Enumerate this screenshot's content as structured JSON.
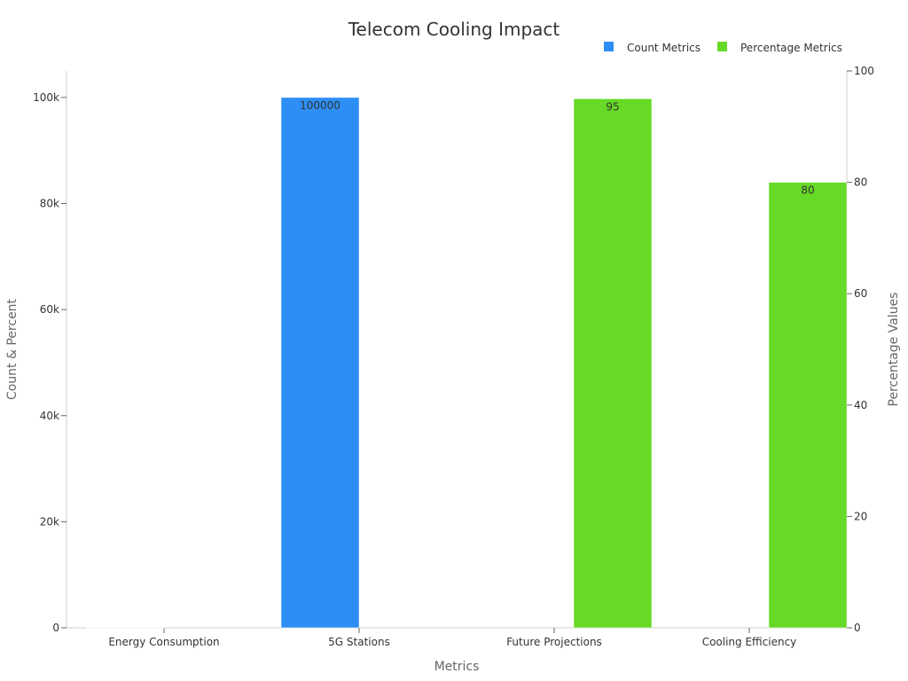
{
  "colors": {
    "count": "#2d8ff5",
    "percentage": "#66da26",
    "energy_bar": "#cfe3f7"
  },
  "chart_data": {
    "type": "bar",
    "title": "Telecom Cooling Impact",
    "xlabel": "Metrics",
    "ylabel_left": "Count & Percent",
    "ylabel_right": "Percentage Values",
    "categories": [
      "Energy Consumption",
      "5G Stations",
      "Future Projections",
      "Cooling Efficiency"
    ],
    "legend_position": "top-right",
    "series": [
      {
        "name": "Count Metrics",
        "axis": "left",
        "values": [
          30,
          100000,
          null,
          null
        ],
        "labels": [
          "",
          "100000",
          "",
          ""
        ]
      },
      {
        "name": "Percentage Metrics",
        "axis": "right",
        "values": [
          null,
          null,
          95,
          80
        ],
        "labels": [
          "",
          "",
          "95",
          "80"
        ]
      }
    ],
    "ylim_left": [
      0,
      105000
    ],
    "ylim_right": [
      0,
      100
    ],
    "left_ticks": [
      {
        "value": 0,
        "label": "0"
      },
      {
        "value": 20000,
        "label": "20k"
      },
      {
        "value": 40000,
        "label": "40k"
      },
      {
        "value": 60000,
        "label": "60k"
      },
      {
        "value": 80000,
        "label": "80k"
      },
      {
        "value": 100000,
        "label": "100k"
      }
    ],
    "right_ticks": [
      {
        "value": 0,
        "label": "0"
      },
      {
        "value": 20,
        "label": "20"
      },
      {
        "value": 40,
        "label": "40"
      },
      {
        "value": 60,
        "label": "60"
      },
      {
        "value": 80,
        "label": "80"
      },
      {
        "value": 100,
        "label": "100"
      }
    ],
    "grid": false
  }
}
